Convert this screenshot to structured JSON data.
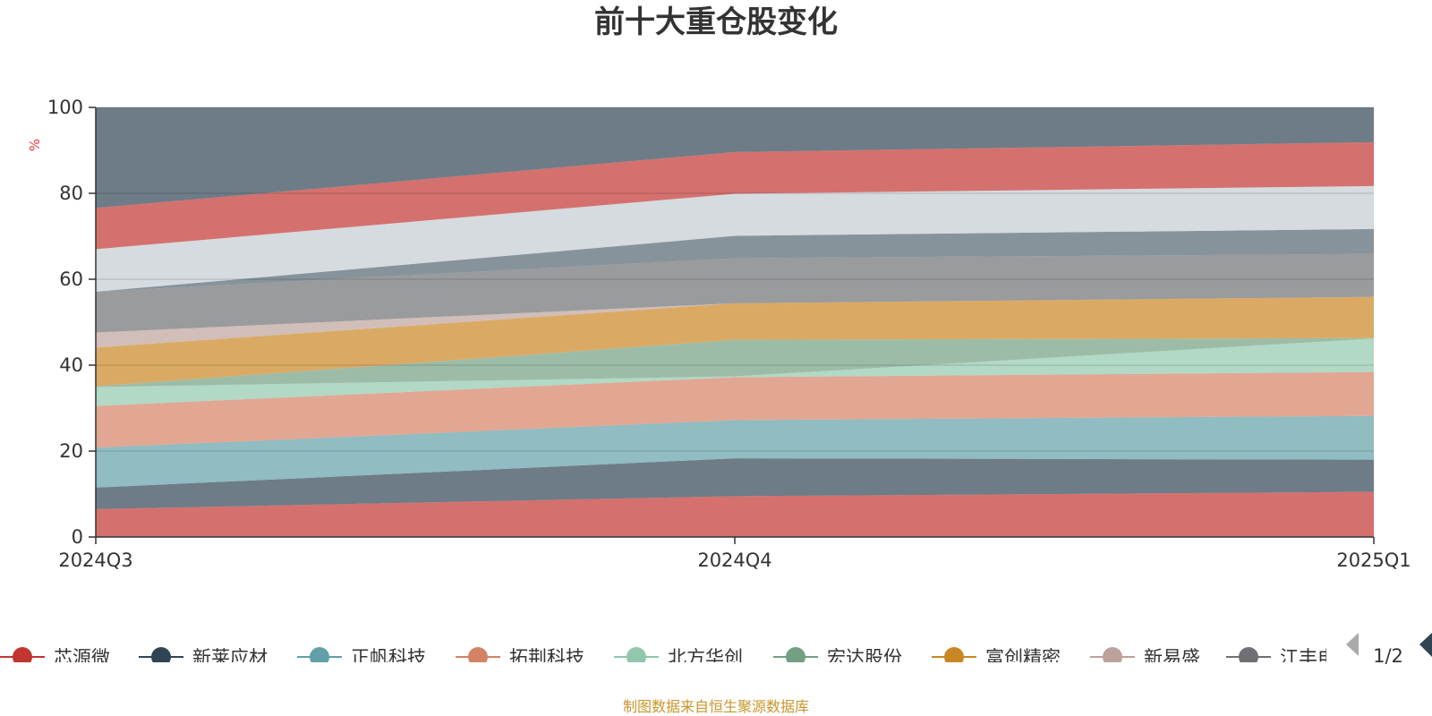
{
  "chart_data": {
    "type": "area",
    "stacked": true,
    "title": "前十大重仓股变化",
    "ylabel": "%",
    "ylim": [
      0,
      100
    ],
    "y_ticks": [
      "0",
      "20",
      "40",
      "60",
      "80",
      "100"
    ],
    "categories": [
      "2024Q3",
      "2024Q4",
      "2025Q1"
    ],
    "grid": true,
    "legend_position": "bottom",
    "series": [
      {
        "name": "芯源微",
        "color": "#c23531",
        "values": [
          6.5,
          9.5,
          10.5
        ]
      },
      {
        "name": "新莱应材",
        "color": "#2f4554",
        "values": [
          5.0,
          8.8,
          7.5
        ]
      },
      {
        "name": "正帆科技",
        "color": "#61a0a8",
        "values": [
          9.3,
          8.9,
          10.2
        ]
      },
      {
        "name": "拓荆科技",
        "color": "#d48265",
        "values": [
          9.7,
          10.0,
          10.2
        ]
      },
      {
        "name": "北方华创",
        "color": "#91c7ae",
        "values": [
          4.4,
          0.2,
          7.8
        ]
      },
      {
        "name": "宏达股份",
        "color": "#749f83",
        "values": [
          0.2,
          8.5,
          0.1
        ]
      },
      {
        "name": "富创精密",
        "color": "#ca8622",
        "values": [
          9.0,
          8.5,
          9.6
        ]
      },
      {
        "name": "新易盛",
        "color": "#bda29a",
        "values": [
          3.5,
          0.0,
          0.0
        ]
      },
      {
        "name": "江丰电子",
        "color": "#6e7074",
        "values": [
          9.5,
          10.5,
          10.0
        ]
      },
      {
        "name": "",
        "color": "#546570",
        "values": [
          0.0,
          5.2,
          5.8
        ]
      },
      {
        "name": "",
        "color": "#c4ccd3",
        "values": [
          9.9,
          9.8,
          10.0
        ]
      },
      {
        "name": "",
        "color": "#c23531",
        "values": [
          9.6,
          9.7,
          10.2
        ]
      },
      {
        "name": "",
        "color": "#2f4554",
        "values": [
          23.4,
          10.4,
          8.1
        ]
      }
    ],
    "legend_items": [
      "芯源微",
      "新莱应材",
      "正帆科技",
      "拓荆科技",
      "北方华创",
      "宏达股份",
      "富创精密",
      "新易盛",
      "江丰电子"
    ],
    "legend_page": "1/2",
    "footer": "制图数据来自恒生聚源数据库"
  }
}
